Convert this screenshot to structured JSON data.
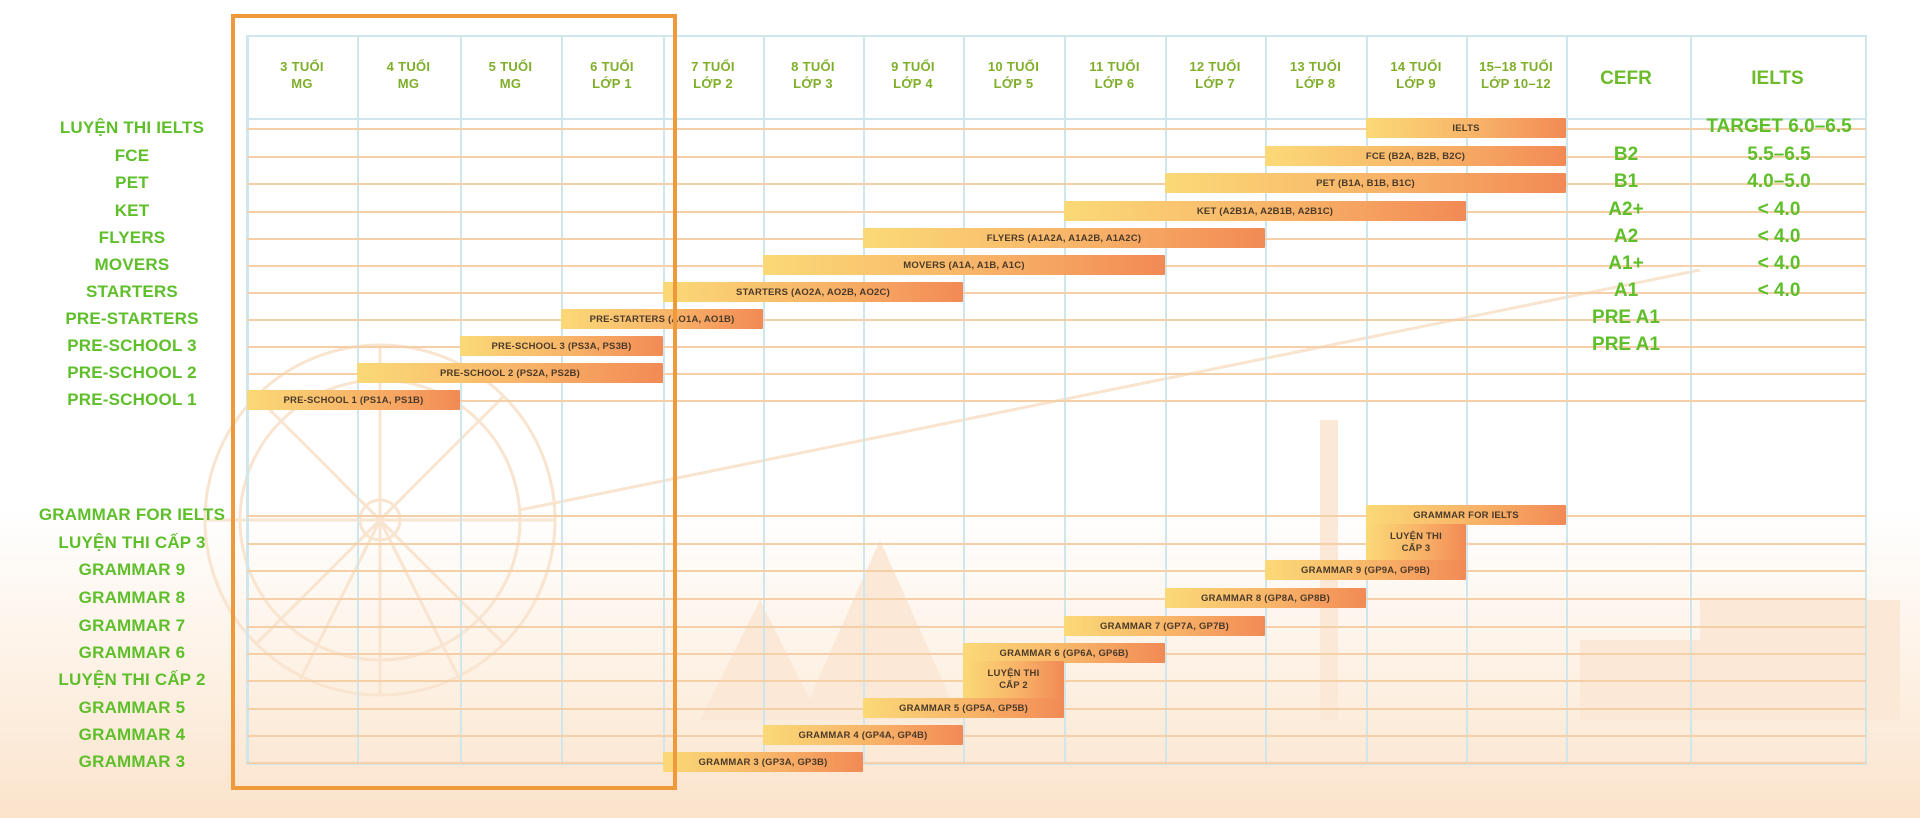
{
  "columns": [
    {
      "line1": "3 TUỔI",
      "line2": "MG"
    },
    {
      "line1": "4 TUỔI",
      "line2": "MG"
    },
    {
      "line1": "5 TUỔI",
      "line2": "MG"
    },
    {
      "line1": "6 TUỔI",
      "line2": "LỚP 1"
    },
    {
      "line1": "7 TUỔI",
      "line2": "LỚP 2"
    },
    {
      "line1": "8 TUỔI",
      "line2": "LỚP 3"
    },
    {
      "line1": "9 TUỔI",
      "line2": "LỚP 4"
    },
    {
      "line1": "10 TUỔI",
      "line2": "LỚP 5"
    },
    {
      "line1": "11 TUỔI",
      "line2": "LỚP 6"
    },
    {
      "line1": "12 TUỔI",
      "line2": "LỚP 7"
    },
    {
      "line1": "13 TUỔI",
      "line2": "LỚP 8"
    },
    {
      "line1": "14 TUỔI",
      "line2": "LỚP 9"
    },
    {
      "line1": "15–18 TUỔI",
      "line2": "LỚP 10–12"
    }
  ],
  "extra_headers": {
    "cefr": "CEFR",
    "ielts": "IELTS"
  },
  "rows": [
    {
      "label": "LUYỆN THI IELTS",
      "bar": "IELTS",
      "start": 11,
      "end": 13,
      "cefr": "",
      "ielts": "TARGET 6.0–6.5"
    },
    {
      "label": "FCE",
      "bar": "FCE (B2A, B2B, B2C)",
      "start": 10,
      "end": 13,
      "cefr": "B2",
      "ielts": "5.5–6.5"
    },
    {
      "label": "PET",
      "bar": "PET (B1A, B1B, B1C)",
      "start": 9,
      "end": 13,
      "cefr": "B1",
      "ielts": "4.0–5.0"
    },
    {
      "label": "KET",
      "bar": "KET (A2B1A, A2B1B, A2B1C)",
      "start": 8,
      "end": 12,
      "cefr": "A2+",
      "ielts": "< 4.0"
    },
    {
      "label": "FLYERS",
      "bar": "FLYERS (A1A2A, A1A2B, A1A2C)",
      "start": 6,
      "end": 10,
      "cefr": "A2",
      "ielts": "< 4.0"
    },
    {
      "label": "MOVERS",
      "bar": "MOVERS (A1A, A1B, A1C)",
      "start": 5,
      "end": 9,
      "cefr": "A1+",
      "ielts": "< 4.0"
    },
    {
      "label": "STARTERS",
      "bar": "STARTERS (AO2A, AO2B, AO2C)",
      "start": 4,
      "end": 7,
      "cefr": "A1",
      "ielts": "< 4.0"
    },
    {
      "label": "PRE-STARTERS",
      "bar": "PRE-STARTERS (AO1A, AO1B)",
      "start": 3,
      "end": 5,
      "cefr": "PRE A1",
      "ielts": ""
    },
    {
      "label": "PRE-SCHOOL 3",
      "bar": "PRE-SCHOOL 3 (PS3A, PS3B)",
      "start": 2,
      "end": 4,
      "cefr": "PRE A1",
      "ielts": ""
    },
    {
      "label": "PRE-SCHOOL 2",
      "bar": "PRE-SCHOOL 2 (PS2A, PS2B)",
      "start": 1,
      "end": 4,
      "cefr": "",
      "ielts": ""
    },
    {
      "label": "PRE-SCHOOL 1",
      "bar": "PRE-SCHOOL 1 (PS1A, PS1B)",
      "start": 0,
      "end": 2,
      "cefr": "",
      "ielts": ""
    }
  ],
  "grammar_rows": [
    {
      "label": "GRAMMAR FOR IELTS",
      "bar": "GRAMMAR FOR IELTS",
      "bar2": "",
      "start": 11,
      "end": 13
    },
    {
      "label": "LUYỆN THI CẤP 3",
      "bar": "LUYỆN THI",
      "bar2": "CẤP 3",
      "start": 11,
      "end": 12
    },
    {
      "label": "GRAMMAR 9",
      "bar": "GRAMMAR 9 (GP9A, GP9B)",
      "bar2": "",
      "start": 10,
      "end": 12
    },
    {
      "label": "GRAMMAR 8",
      "bar": "GRAMMAR 8 (GP8A, GP8B)",
      "bar2": "",
      "start": 9,
      "end": 11
    },
    {
      "label": "GRAMMAR 7",
      "bar": "GRAMMAR 7 (GP7A, GP7B)",
      "bar2": "",
      "start": 8,
      "end": 10
    },
    {
      "label": "GRAMMAR 6",
      "bar": "GRAMMAR 6 (GP6A, GP6B)",
      "bar2": "",
      "start": 7,
      "end": 9
    },
    {
      "label": "LUYỆN THI CẤP 2",
      "bar": "LUYỆN THI",
      "bar2": "CẤP 2",
      "start": 7,
      "end": 8
    },
    {
      "label": "GRAMMAR 5",
      "bar": "GRAMMAR 5 (GP5A, GP5B)",
      "bar2": "",
      "start": 6,
      "end": 8
    },
    {
      "label": "GRAMMAR 4",
      "bar": "GRAMMAR 4 (GP4A, GP4B)",
      "bar2": "",
      "start": 5,
      "end": 7
    },
    {
      "label": "GRAMMAR 3",
      "bar": "GRAMMAR 3 (GP3A, GP3B)",
      "bar2": "",
      "start": 4,
      "end": 6
    }
  ],
  "colors": {
    "label_green": "#5fbf2a",
    "bar_start": "#fbd977",
    "bar_end": "#f28a55",
    "highlight": "#ee9a3a",
    "grid": "#cfe6ec"
  }
}
